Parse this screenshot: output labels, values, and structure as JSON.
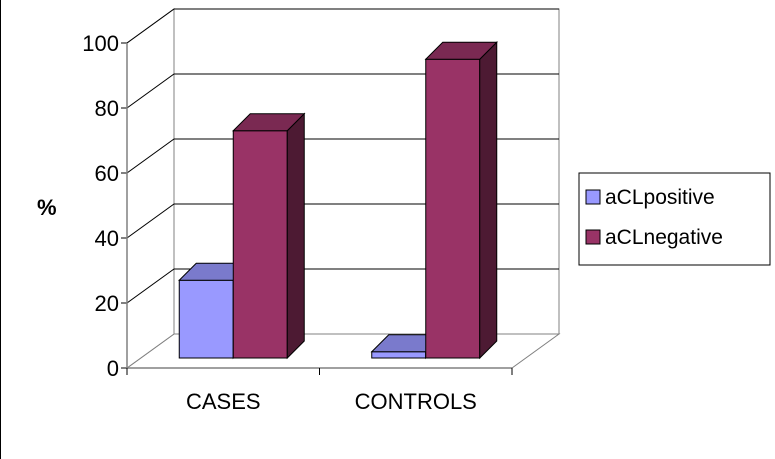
{
  "chart_data": {
    "type": "bar",
    "title": "",
    "xlabel": "",
    "ylabel": "%",
    "ylim": [
      0,
      100
    ],
    "yticks": [
      "0",
      "20",
      "40",
      "60",
      "80",
      "100"
    ],
    "categories": [
      "CASES",
      "CONTROLS"
    ],
    "series": [
      {
        "name": "aCLpositive",
        "values": [
          27,
          5
        ],
        "color": "#9999ff"
      },
      {
        "name": "aCLnegative",
        "values": [
          73,
          95
        ],
        "color": "#993366"
      }
    ],
    "grid": true,
    "legend_position": "right",
    "style": "3d-clustered-column"
  }
}
